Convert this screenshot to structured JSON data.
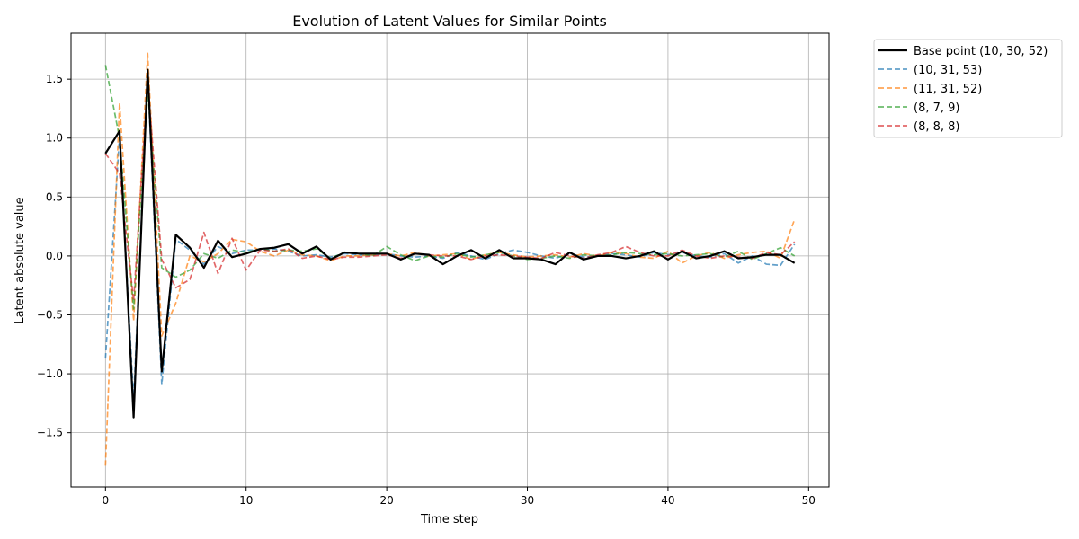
{
  "chart_data": {
    "type": "line",
    "title": "Evolution of Latent Values for Similar Points",
    "xlabel": "Time step",
    "ylabel": "Latent absolute value",
    "xlim": [
      -2.45,
      51.45
    ],
    "ylim": [
      -1.96,
      1.89
    ],
    "xticks": [
      0,
      10,
      20,
      30,
      40,
      50
    ],
    "yticks": [
      -1.5,
      -1.0,
      -0.5,
      0.0,
      0.5,
      1.0,
      1.5
    ],
    "x_tick_labels": [
      "0",
      "10",
      "20",
      "30",
      "40",
      "50"
    ],
    "y_tick_labels": [
      "−1.5",
      "−1.0",
      "−0.5",
      "0.0",
      "0.5",
      "1.0",
      "1.5"
    ],
    "grid": true,
    "legend_position": "outside-top-right",
    "x": [
      0,
      1,
      2,
      3,
      4,
      5,
      6,
      7,
      8,
      9,
      10,
      11,
      12,
      13,
      14,
      15,
      16,
      17,
      18,
      19,
      20,
      21,
      22,
      23,
      24,
      25,
      26,
      27,
      28,
      29,
      30,
      31,
      32,
      33,
      34,
      35,
      36,
      37,
      38,
      39,
      40,
      41,
      42,
      43,
      44,
      45,
      46,
      47,
      48,
      49
    ],
    "series": [
      {
        "name": "(10, 31, 53)",
        "color": "#1f77b4",
        "style": "dashed",
        "values": [
          -0.87,
          1.02,
          -1.23,
          1.52,
          -1.09,
          0.14,
          0.05,
          -0.07,
          0.08,
          0.02,
          0.05,
          0.05,
          0.06,
          0.04,
          0.0,
          0.01,
          -0.01,
          0.02,
          0.01,
          0.01,
          0.02,
          0.0,
          -0.01,
          0.0,
          -0.02,
          0.03,
          0.0,
          -0.03,
          0.02,
          0.05,
          0.03,
          0.0,
          -0.02,
          0.02,
          -0.01,
          0.0,
          0.02,
          0.01,
          -0.01,
          0.03,
          0.01,
          0.03,
          0.0,
          -0.01,
          0.02,
          -0.06,
          0.0,
          -0.07,
          -0.08,
          0.1
        ]
      },
      {
        "name": "(11, 31, 52)",
        "color": "#ff7f0e",
        "style": "dashed",
        "values": [
          -1.78,
          1.3,
          -0.55,
          1.72,
          -0.68,
          -0.4,
          0.0,
          -0.05,
          0.02,
          0.14,
          0.12,
          0.04,
          0.0,
          0.05,
          0.01,
          0.0,
          -0.04,
          0.0,
          0.0,
          0.01,
          0.02,
          0.0,
          0.03,
          0.0,
          0.01,
          0.02,
          -0.03,
          0.01,
          0.03,
          0.01,
          -0.01,
          0.0,
          0.01,
          -0.01,
          0.02,
          0.0,
          0.03,
          0.02,
          -0.01,
          -0.02,
          0.04,
          -0.06,
          0.0,
          0.03,
          -0.02,
          0.01,
          0.03,
          0.04,
          -0.02,
          0.31
        ]
      },
      {
        "name": "(8, 7, 9)",
        "color": "#2ca02c",
        "style": "dashed",
        "values": [
          1.62,
          1.0,
          -0.45,
          1.4,
          -0.1,
          -0.18,
          -0.12,
          0.02,
          -0.02,
          0.05,
          0.03,
          0.06,
          0.04,
          0.05,
          0.04,
          0.06,
          -0.02,
          0.03,
          0.02,
          0.0,
          0.08,
          0.01,
          -0.04,
          0.0,
          -0.01,
          0.02,
          -0.01,
          0.01,
          0.03,
          0.0,
          -0.03,
          -0.02,
          0.0,
          -0.02,
          0.01,
          0.0,
          0.01,
          0.03,
          0.02,
          0.01,
          0.02,
          0.0,
          0.01,
          0.02,
          -0.01,
          0.04,
          -0.03,
          0.02,
          0.07,
          0.0
        ]
      },
      {
        "name": "(8, 8, 8)",
        "color": "#d62728",
        "style": "dashed",
        "values": [
          0.87,
          0.7,
          -0.38,
          1.48,
          -0.03,
          -0.27,
          -0.2,
          0.2,
          -0.15,
          0.15,
          -0.12,
          0.05,
          0.04,
          0.06,
          -0.02,
          0.0,
          -0.03,
          -0.01,
          -0.01,
          0.0,
          0.01,
          -0.02,
          0.02,
          0.01,
          0.0,
          0.0,
          -0.03,
          0.0,
          0.01,
          0.0,
          -0.01,
          -0.02,
          0.03,
          0.0,
          -0.02,
          0.01,
          0.03,
          0.08,
          0.03,
          0.0,
          0.0,
          0.05,
          0.0,
          -0.02,
          0.0,
          -0.01,
          -0.02,
          0.03,
          0.01,
          0.12
        ]
      },
      {
        "name": "Base point (10, 30, 52)",
        "color": "#000000",
        "style": "solid",
        "values": [
          0.87,
          1.06,
          -1.37,
          1.58,
          -0.98,
          0.18,
          0.07,
          -0.1,
          0.13,
          -0.01,
          0.02,
          0.06,
          0.07,
          0.1,
          0.02,
          0.08,
          -0.03,
          0.03,
          0.02,
          0.02,
          0.02,
          -0.03,
          0.02,
          0.01,
          -0.07,
          0.0,
          0.05,
          -0.02,
          0.05,
          -0.02,
          -0.02,
          -0.03,
          -0.07,
          0.03,
          -0.03,
          0.0,
          0.0,
          -0.02,
          0.0,
          0.04,
          -0.03,
          0.04,
          -0.02,
          0.0,
          0.04,
          -0.02,
          -0.01,
          0.01,
          0.01,
          -0.06
        ]
      }
    ],
    "legend_order": [
      "Base point (10, 30, 52)",
      "(10, 31, 53)",
      "(11, 31, 52)",
      "(8, 7, 9)",
      "(8, 8, 8)"
    ]
  }
}
